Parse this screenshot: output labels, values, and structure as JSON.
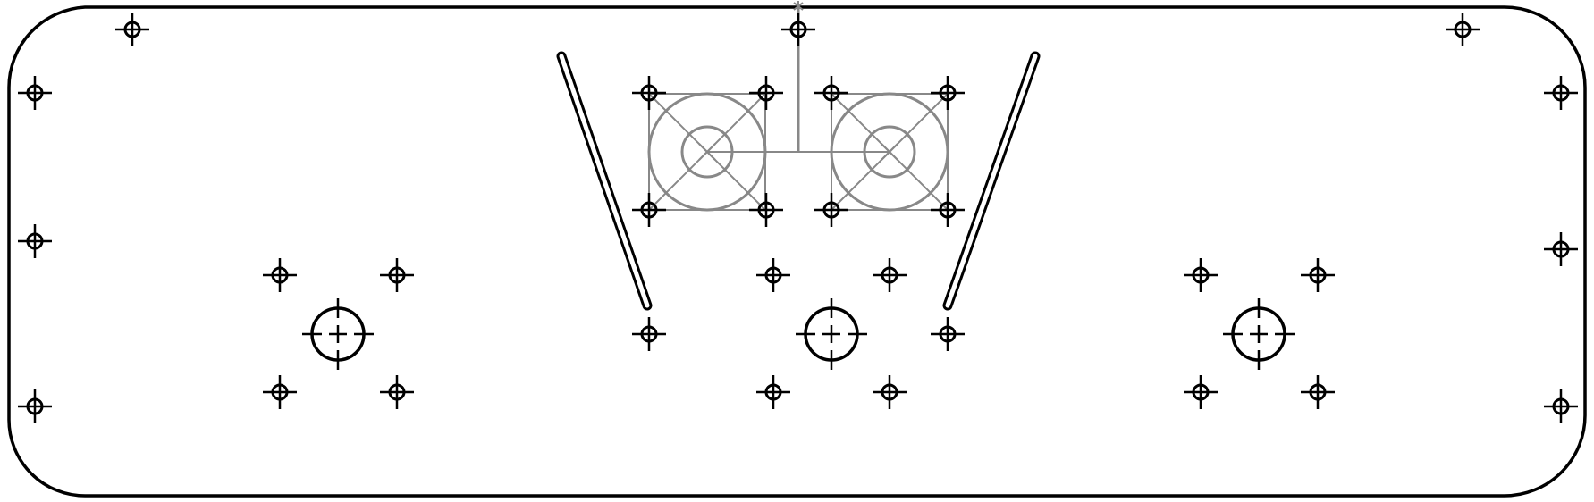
{
  "drawing": {
    "kind": "panel-cutout-drawing",
    "colors": {
      "outline": "#000000",
      "fan_guide": "#888888",
      "background": "#ffffff"
    },
    "mounting_hole_count": 34,
    "large_hole_count": 3,
    "slot_count": 2,
    "fan_count": 2
  }
}
